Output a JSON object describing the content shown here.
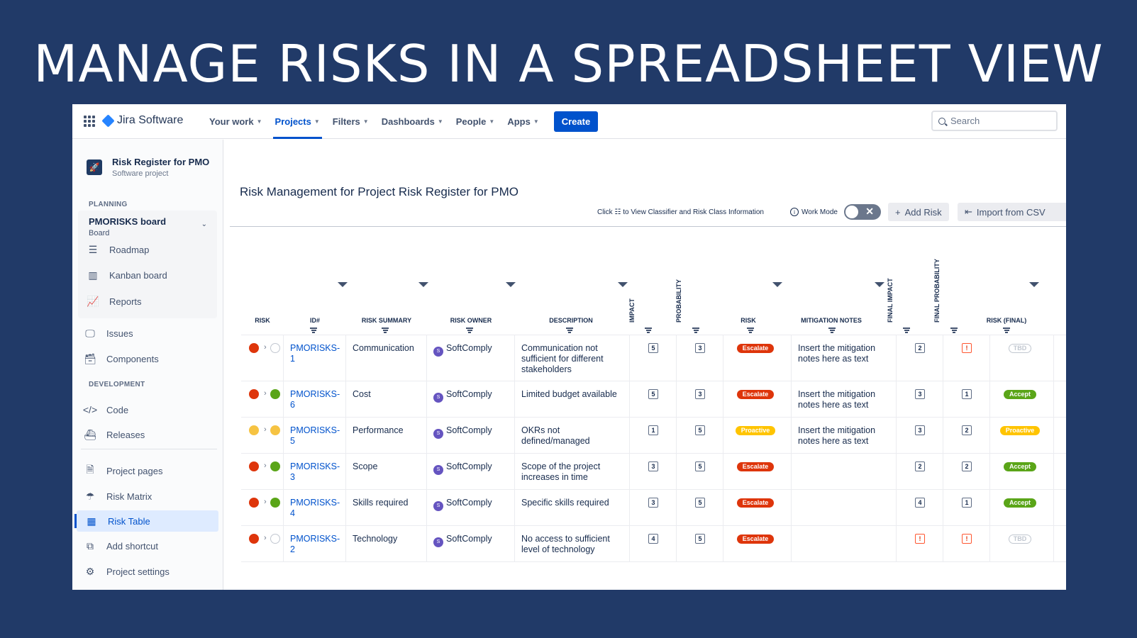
{
  "slide_title": "MANAGE RISKS IN A SPREADSHEET VIEW",
  "topnav": {
    "product": "Jira Software",
    "items": [
      {
        "label": "Your work",
        "active": false
      },
      {
        "label": "Projects",
        "active": true
      },
      {
        "label": "Filters",
        "active": false
      },
      {
        "label": "Dashboards",
        "active": false
      },
      {
        "label": "People",
        "active": false
      },
      {
        "label": "Apps",
        "active": false
      }
    ],
    "create_label": "Create",
    "search_placeholder": "Search"
  },
  "sidebar": {
    "project_name": "Risk Register for PMO",
    "project_type": "Software project",
    "planning_label": "PLANNING",
    "board_title": "PMORISKS board",
    "board_sub": "Board",
    "board_items": [
      "Roadmap",
      "Kanban board",
      "Reports"
    ],
    "items_a": [
      "Issues",
      "Components"
    ],
    "development_label": "DEVELOPMENT",
    "dev_items": [
      "Code",
      "Releases"
    ],
    "items_b": [
      "Project pages",
      "Risk Matrix",
      "Risk Table",
      "Add shortcut",
      "Project settings"
    ],
    "active_item": "Risk Table"
  },
  "main": {
    "title": "Risk Management for Project Risk Register for PMO",
    "hint_prefix": "Click",
    "hint_suffix": "to View Classifier and Risk Class Information",
    "work_mode_label": "Work Mode",
    "add_risk_label": "Add Risk",
    "import_label": "Import from CSV"
  },
  "table": {
    "headers": {
      "risk": "RISK",
      "id": "ID#",
      "summary": "RISK SUMMARY",
      "owner": "RISK OWNER",
      "description": "DESCRIPTION",
      "impact": "IMPACT",
      "probability": "PROBABILITY",
      "risk2": "RISK",
      "mitigation": "MITIGATION NOTES",
      "final_impact": "FINAL IMPACT",
      "final_probability": "FINAL PROBABILITY",
      "risk_final": "RISK (FINAL)"
    },
    "rows": [
      {
        "dot1": "#de350b",
        "dot2": "empty",
        "id_a": "PMORISKS-",
        "id_b": "1",
        "summary": "Communication",
        "owner": "SoftComply",
        "desc_a": "Communication not",
        "desc_b": "sufficient for different",
        "desc_c": "stakeholders",
        "impact": "5",
        "prob": "3",
        "risk": "Escalate",
        "risk_kind": "escalate",
        "mit_a": "Insert the mitigation",
        "mit_b": "notes here as text",
        "fimpact": "2",
        "fprob": "!",
        "final": "TBD",
        "final_kind": "tbd"
      },
      {
        "dot1": "#de350b",
        "dot2": "#5aa518",
        "id_a": "PMORISKS-",
        "id_b": "6",
        "summary": "Cost",
        "owner": "SoftComply",
        "desc_a": "Limited budget available",
        "desc_b": "",
        "desc_c": "",
        "impact": "5",
        "prob": "3",
        "risk": "Escalate",
        "risk_kind": "escalate",
        "mit_a": "Insert the mitigation",
        "mit_b": "notes here as text",
        "fimpact": "3",
        "fprob": "1",
        "final": "Accept",
        "final_kind": "accept"
      },
      {
        "dot1": "#f6c342",
        "dot2": "#f6c342",
        "id_a": "PMORISKS-",
        "id_b": "5",
        "summary": "Performance",
        "owner": "SoftComply",
        "desc_a": "OKRs not",
        "desc_b": "defined/managed",
        "desc_c": "",
        "impact": "1",
        "prob": "5",
        "risk": "Proactive",
        "risk_kind": "proactive",
        "mit_a": "Insert the mitigation",
        "mit_b": "notes here as text",
        "fimpact": "3",
        "fprob": "2",
        "final": "Proactive",
        "final_kind": "proactive"
      },
      {
        "dot1": "#de350b",
        "dot2": "#5aa518",
        "id_a": "PMORISKS-",
        "id_b": "3",
        "summary": "Scope",
        "owner": "SoftComply",
        "desc_a": "Scope of the project",
        "desc_b": "increases in time",
        "desc_c": "",
        "impact": "3",
        "prob": "5",
        "risk": "Escalate",
        "risk_kind": "escalate",
        "mit_a": "",
        "mit_b": "",
        "fimpact": "2",
        "fprob": "2",
        "final": "Accept",
        "final_kind": "accept"
      },
      {
        "dot1": "#de350b",
        "dot2": "#5aa518",
        "id_a": "PMORISKS-",
        "id_b": "4",
        "summary": "Skills required",
        "owner": "SoftComply",
        "desc_a": "Specific skills required",
        "desc_b": "",
        "desc_c": "",
        "impact": "3",
        "prob": "5",
        "risk": "Escalate",
        "risk_kind": "escalate",
        "mit_a": "",
        "mit_b": "",
        "fimpact": "4",
        "fprob": "1",
        "final": "Accept",
        "final_kind": "accept"
      },
      {
        "dot1": "#de350b",
        "dot2": "empty",
        "id_a": "PMORISKS-",
        "id_b": "2",
        "summary": "Technology",
        "owner": "SoftComply",
        "desc_a": "No access to sufficient",
        "desc_b": "level of technology",
        "desc_c": "",
        "impact": "4",
        "prob": "5",
        "risk": "Escalate",
        "risk_kind": "escalate",
        "mit_a": "",
        "mit_b": "",
        "fimpact": "!",
        "fprob": "!",
        "final": "TBD",
        "final_kind": "tbd"
      }
    ]
  }
}
